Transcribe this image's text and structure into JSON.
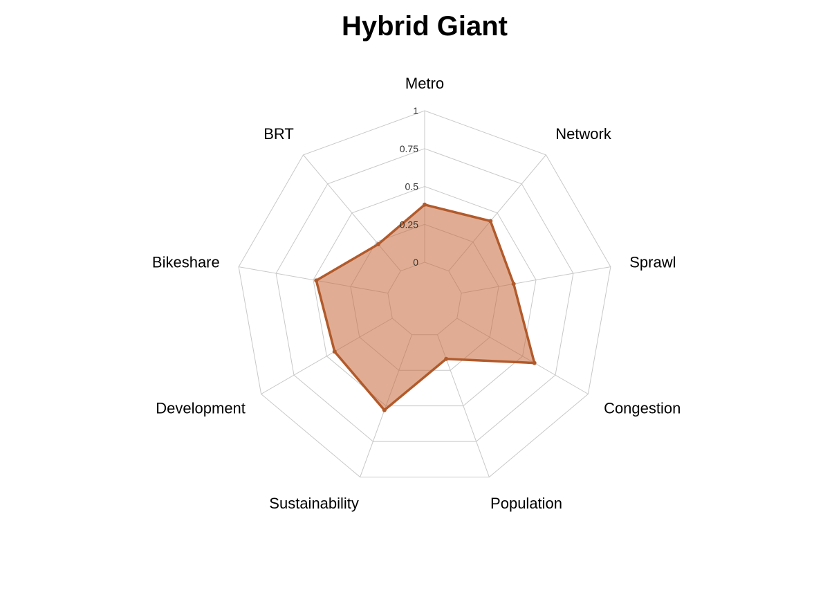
{
  "chart_data": {
    "type": "radar",
    "title": "Hybrid Giant",
    "axes": [
      "Metro",
      "Network",
      "Sprawl",
      "Congestion",
      "Population",
      "Sustainability",
      "Development",
      "Bikeshare",
      "BRT"
    ],
    "ticks": [
      "0",
      "0.25",
      "0.5",
      "0.75",
      "1"
    ],
    "range": [
      0,
      1
    ],
    "series": [
      {
        "values": [
          0.38,
          0.43,
          0.35,
          0.59,
          0.17,
          0.53,
          0.44,
          0.48,
          0.23
        ]
      }
    ],
    "colors": {
      "line": "#b25a2b",
      "fill": "#c66a3c",
      "grid": "#c8c8c8"
    },
    "grid": true
  }
}
